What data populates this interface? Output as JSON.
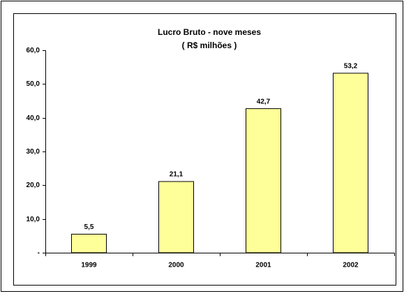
{
  "chart_data": {
    "type": "bar",
    "title": "Lucro Bruto - nove meses",
    "subtitle": "( R$ milhões )",
    "categories": [
      "1999",
      "2000",
      "2001",
      "2002"
    ],
    "values": [
      5.5,
      21.1,
      42.7,
      53.2
    ],
    "value_labels": [
      "5,5",
      "21,1",
      "42,7",
      "53,2"
    ],
    "color": "#ffff99",
    "ylim": [
      0,
      60
    ],
    "yticks": [
      {
        "value": 0,
        "label": "-"
      },
      {
        "value": 10,
        "label": "10,0"
      },
      {
        "value": 20,
        "label": "20,0"
      },
      {
        "value": 30,
        "label": "30,0"
      },
      {
        "value": 40,
        "label": "40,0"
      },
      {
        "value": 50,
        "label": "50,0"
      },
      {
        "value": 60,
        "label": "60,0"
      }
    ],
    "grid": false
  }
}
